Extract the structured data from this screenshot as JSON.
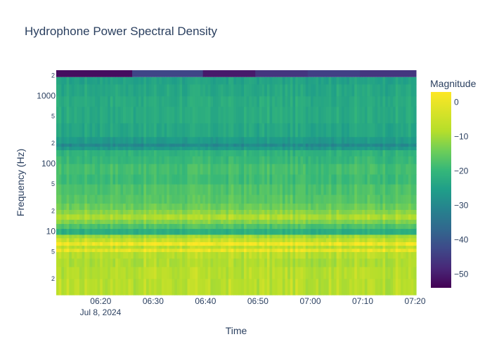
{
  "chart_data": {
    "type": "heatmap",
    "title": "Hydrophone Power Spectral Density",
    "xlabel": "Time",
    "ylabel": "Frequency (Hz)",
    "y_scale": "log",
    "x_tick_labels": [
      "06:20",
      "06:30",
      "06:40",
      "06:50",
      "07:00",
      "07:10",
      "07:20"
    ],
    "x_date_label": "Jul 8, 2024",
    "x_tick_minutes": [
      20,
      30,
      40,
      50,
      60,
      70,
      80
    ],
    "x_range_minutes": [
      11.5,
      80.2
    ],
    "y_major_ticks": [
      {
        "value": 10,
        "label": "10"
      },
      {
        "value": 100,
        "label": "100"
      },
      {
        "value": 1000,
        "label": "1000"
      }
    ],
    "y_minor_ticks": [
      {
        "value": 2,
        "label": "2"
      },
      {
        "value": 5,
        "label": "5"
      },
      {
        "value": 20,
        "label": "2"
      },
      {
        "value": 50,
        "label": "5"
      },
      {
        "value": 200,
        "label": "2"
      },
      {
        "value": 500,
        "label": "5"
      },
      {
        "value": 2000,
        "label": "2"
      }
    ],
    "y_range_hz": [
      1.15,
      2400
    ],
    "colorbar": {
      "title": "Magnitude",
      "colorscale": "Viridis",
      "range": [
        -54,
        3
      ],
      "ticks": [
        {
          "value": 0,
          "label": "0"
        },
        {
          "value": -10,
          "label": "−10"
        },
        {
          "value": -20,
          "label": "−20"
        },
        {
          "value": -30,
          "label": "−30"
        },
        {
          "value": -40,
          "label": "−40"
        },
        {
          "value": -50,
          "label": "−50"
        }
      ]
    },
    "time_bins_minutes": [
      11.5,
      26.0,
      39.5,
      49.5,
      59.5,
      69.5,
      80.2
    ],
    "top_band_minutes": [
      11.5,
      26.0,
      39.5,
      49.5,
      59.5,
      69.5,
      80.2
    ],
    "top_band_values": [
      -52,
      -42,
      -50,
      -45,
      -43,
      -45
    ],
    "frequency_profile": [
      {
        "f": 1.15,
        "value": -3
      },
      {
        "f": 2,
        "value": -3
      },
      {
        "f": 3,
        "value": -4
      },
      {
        "f": 4,
        "value": -3
      },
      {
        "f": 5,
        "value": 1
      },
      {
        "f": 5.6,
        "value": -3
      },
      {
        "f": 6.2,
        "value": 2
      },
      {
        "f": 7,
        "value": -2
      },
      {
        "f": 8,
        "value": -5
      },
      {
        "f": 9,
        "value": -18
      },
      {
        "f": 11,
        "value": -13
      },
      {
        "f": 13,
        "value": -8
      },
      {
        "f": 15,
        "value": -4
      },
      {
        "f": 18,
        "value": -7
      },
      {
        "f": 21,
        "value": -10
      },
      {
        "f": 26,
        "value": -12
      },
      {
        "f": 35,
        "value": -13
      },
      {
        "f": 50,
        "value": -15
      },
      {
        "f": 70,
        "value": -14
      },
      {
        "f": 100,
        "value": -16
      },
      {
        "f": 130,
        "value": -17
      },
      {
        "f": 160,
        "value": -23
      },
      {
        "f": 180,
        "value": -27
      },
      {
        "f": 200,
        "value": -23
      },
      {
        "f": 250,
        "value": -20
      },
      {
        "f": 400,
        "value": -19
      },
      {
        "f": 700,
        "value": -19
      },
      {
        "f": 1000,
        "value": -20
      },
      {
        "f": 1500,
        "value": -21
      },
      {
        "f": 1900,
        "value": -22
      }
    ]
  }
}
